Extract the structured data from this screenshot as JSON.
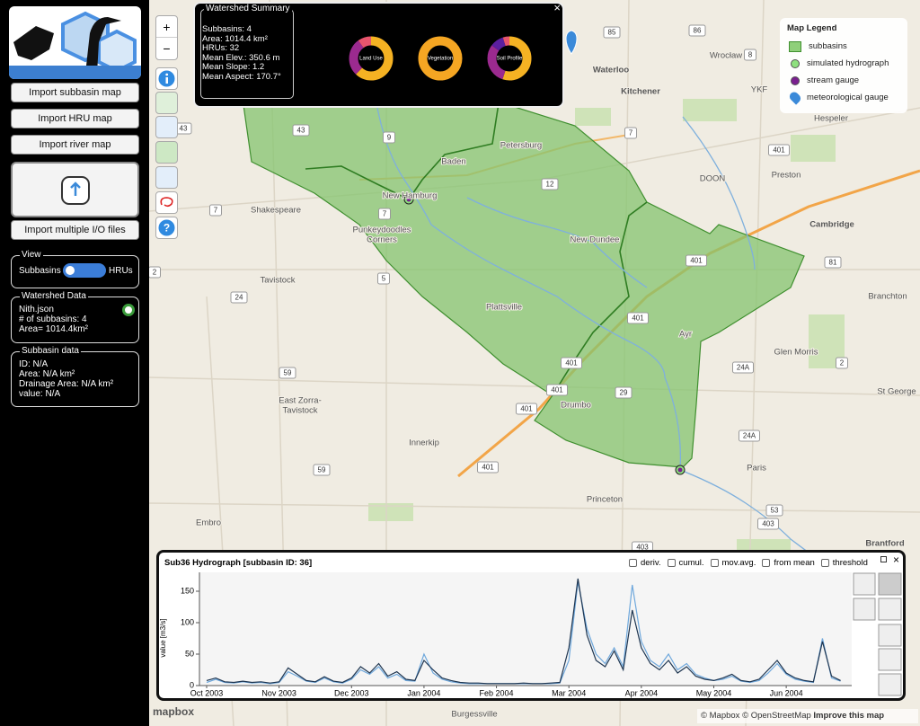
{
  "sidebar": {
    "buttons": [
      "Import subbasin map",
      "Import HRU map",
      "Import river map",
      "Import multiple I/O files"
    ]
  },
  "view": {
    "title": "View",
    "left": "Subbasins",
    "right": "HRUs"
  },
  "watershed_data": {
    "title": "Watershed Data",
    "lines": [
      "Nith.json",
      "# of subbasins: 4",
      "Area= 1014.4km²"
    ]
  },
  "subbasin_data": {
    "title": "Subbasin data",
    "lines": [
      "ID: N/A",
      "Area: N/A km²",
      "Drainage Area: N/A km²",
      "value: N/A"
    ]
  },
  "zoom": [
    "+",
    "−"
  ],
  "summary": {
    "title": "Watershed Summary",
    "close": "×",
    "lines": [
      "Subbasins: 4",
      "Area: 1014.4 km²",
      "HRUs: 32",
      "Mean Elev.: 350.6 m",
      "Mean Slope: 1.2",
      "Mean Aspect: 170.7°"
    ],
    "donuts": [
      {
        "label": "Land Use",
        "values": [
          62,
          28,
          10
        ],
        "colors": [
          "#f5b223",
          "#9b2a8f",
          "#e8556d"
        ]
      },
      {
        "label": "Vegetation",
        "values": [
          100
        ],
        "colors": [
          "#f5a623"
        ]
      },
      {
        "label": "Soil Profile",
        "values": [
          55,
          30,
          10,
          5
        ],
        "colors": [
          "#f5b223",
          "#9b2a8f",
          "#5b1fa0",
          "#e8556d"
        ]
      }
    ]
  },
  "legend": {
    "title": "Map Legend",
    "items": [
      {
        "label": "subbasins",
        "color": "#8fcf7a"
      },
      {
        "label": "simulated hydrograph",
        "color": "#8ee07e"
      },
      {
        "label": "stream gauge",
        "color": "#7a1f8f"
      },
      {
        "label": "meteorological gauge",
        "color": "#3b8ad9"
      }
    ]
  },
  "map": {
    "places": [
      "Waterloo",
      "Kitchener",
      "Wrocław",
      "Cambridge",
      "Preston",
      "Hespeler",
      "Petersburg",
      "Baden",
      "New Hamburg",
      "Shakespeare",
      "Punkeydoodles",
      "Corners",
      "New Dundee",
      "Tavistock",
      "Plattsville",
      "Ayr",
      "Glen Morris",
      "St George",
      "Branchton",
      "East Zorra-",
      "Tavistock",
      "Innerkip",
      "Drumbo",
      "Paris",
      "Princeton",
      "Embro",
      "Brantford",
      "Burgessville",
      "DOON",
      "YKF"
    ],
    "shields": [
      "43",
      "9",
      "7",
      "85",
      "86",
      "8",
      "401",
      "12",
      "7",
      "7",
      "401",
      "5",
      "24",
      "401",
      "81",
      "2",
      "43",
      "401",
      "401",
      "59",
      "29",
      "24A",
      "401",
      "24A",
      "401",
      "59",
      "2",
      "403",
      "403",
      "53"
    ]
  },
  "attribution": {
    "logo": "mapbox",
    "text": "© Mapbox © OpenStreetMap",
    "link": "Improve this map"
  },
  "hydrograph": {
    "close": "×",
    "options": [
      "deriv.",
      "cumul.",
      "mov.avg.",
      "from mean",
      "threshold"
    ]
  },
  "chart_data": {
    "type": "line",
    "title": "Sub36 Hydrograph [subbasin ID: 36]",
    "y_label": "value [m3/s]",
    "categories": [
      "Oct 2003",
      null,
      null,
      null,
      null,
      null,
      null,
      null,
      "Nov 2003",
      null,
      null,
      null,
      null,
      null,
      null,
      null,
      "Dec 2003",
      null,
      null,
      null,
      null,
      null,
      null,
      null,
      "Jan 2004",
      null,
      null,
      null,
      null,
      null,
      null,
      null,
      "Feb 2004",
      null,
      null,
      null,
      null,
      null,
      null,
      null,
      "Mar 2004",
      null,
      null,
      null,
      null,
      null,
      null,
      null,
      "Apr 2004",
      null,
      null,
      null,
      null,
      null,
      null,
      null,
      "May 2004",
      null,
      null,
      null,
      null,
      null,
      null,
      null,
      "Jun 2004",
      null,
      null,
      null,
      null,
      null,
      null
    ],
    "series": [
      {
        "color": "#6fa8dc",
        "values": [
          5,
          10,
          5,
          4,
          6,
          4,
          5,
          3,
          5,
          22,
          15,
          7,
          5,
          12,
          6,
          4,
          10,
          25,
          18,
          30,
          12,
          18,
          8,
          7,
          50,
          20,
          10,
          6,
          4,
          3,
          3,
          3,
          3,
          3,
          3,
          3,
          3,
          3,
          3,
          4,
          40,
          165,
          90,
          50,
          35,
          60,
          30,
          160,
          70,
          40,
          30,
          50,
          25,
          35,
          18,
          12,
          8,
          10,
          15,
          7,
          5,
          8,
          20,
          35,
          18,
          10,
          7,
          5,
          75,
          12,
          7
        ]
      },
      {
        "color": "#1e3550",
        "values": [
          8,
          12,
          6,
          5,
          7,
          5,
          6,
          4,
          6,
          28,
          18,
          8,
          6,
          14,
          7,
          5,
          12,
          30,
          20,
          35,
          15,
          22,
          10,
          8,
          40,
          25,
          12,
          8,
          5,
          4,
          4,
          3,
          3,
          3,
          3,
          4,
          3,
          3,
          4,
          5,
          60,
          170,
          80,
          40,
          30,
          55,
          25,
          120,
          60,
          35,
          25,
          40,
          20,
          30,
          15,
          10,
          8,
          12,
          18,
          8,
          6,
          10,
          25,
          40,
          20,
          12,
          8,
          6,
          70,
          15,
          8
        ]
      }
    ],
    "ylim": [
      0,
      180
    ],
    "yticks": [
      0,
      50,
      100,
      150
    ]
  }
}
